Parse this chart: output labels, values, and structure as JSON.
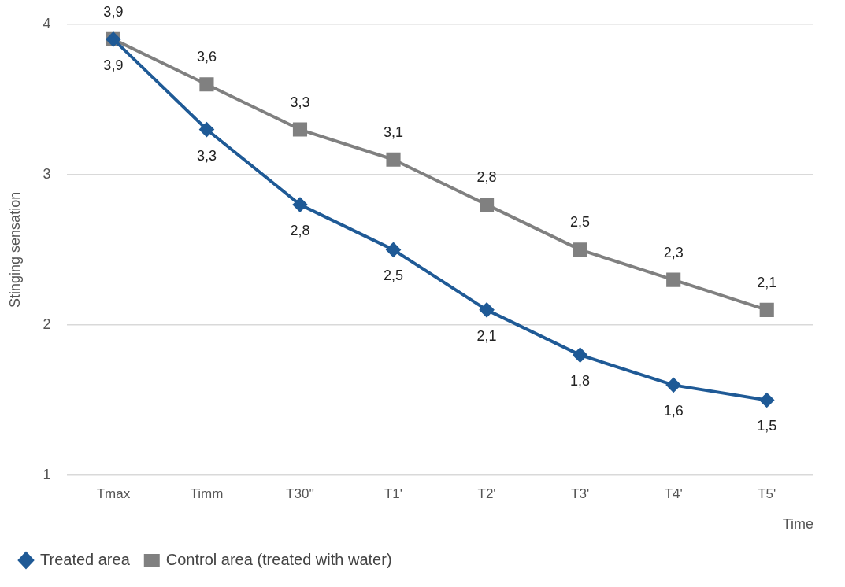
{
  "chart_data": {
    "type": "line",
    "xlabel": "Time",
    "ylabel": "Stinging sensation",
    "categories": [
      "Tmax",
      "Timm",
      "T30''",
      "T1'",
      "T2'",
      "T3'",
      "T4'",
      "T5'"
    ],
    "series": [
      {
        "name": "Treated area",
        "color": "#1f5a96",
        "marker": "diamond",
        "values": [
          3.9,
          3.3,
          2.8,
          2.5,
          2.1,
          1.8,
          1.6,
          1.5
        ],
        "value_labels": [
          "3,9",
          "3,3",
          "2,8",
          "2,5",
          "2,1",
          "1,8",
          "1,6",
          "1,5"
        ]
      },
      {
        "name": "Control area (treated with water)",
        "color": "#808080",
        "marker": "square",
        "values": [
          3.9,
          3.6,
          3.3,
          3.1,
          2.8,
          2.5,
          2.3,
          2.1
        ],
        "value_labels": [
          "3,9",
          "3,6",
          "3,3",
          "3,1",
          "2,8",
          "2,5",
          "2,3",
          "2,1"
        ]
      }
    ],
    "ylim": [
      1,
      4
    ],
    "yticks": [
      1,
      2,
      3,
      4
    ],
    "grid": "y",
    "legend": "bottom",
    "line_style": "solid"
  }
}
